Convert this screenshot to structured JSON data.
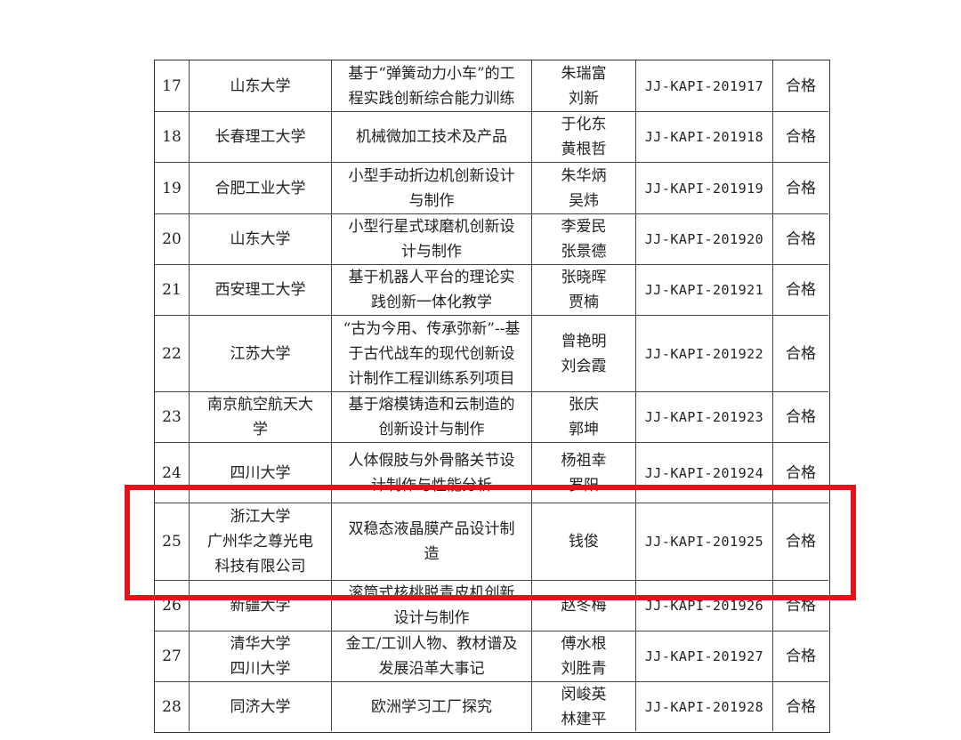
{
  "table": {
    "rows": [
      {
        "no": "17",
        "school": [
          "山东大学"
        ],
        "project": [
          "基于“弹簧动力小车”的工",
          "程实践创新综合能力训练"
        ],
        "people": [
          "朱瑞富",
          "刘新"
        ],
        "code": "JJ-KAPI-201917",
        "result": "合格"
      },
      {
        "no": "18",
        "school": [
          "长春理工大学"
        ],
        "project": [
          "机械微加工技术及产品"
        ],
        "people": [
          "于化东",
          "黄根哲"
        ],
        "code": "JJ-KAPI-201918",
        "result": "合格"
      },
      {
        "no": "19",
        "school": [
          "合肥工业大学"
        ],
        "project": [
          "小型手动折边机创新设计",
          "与制作"
        ],
        "people": [
          "朱华炳",
          "吴炜"
        ],
        "code": "JJ-KAPI-201919",
        "result": "合格"
      },
      {
        "no": "20",
        "school": [
          "山东大学"
        ],
        "project": [
          "小型行星式球磨机创新设",
          "计与制作"
        ],
        "people": [
          "李爱民",
          "张景德"
        ],
        "code": "JJ-KAPI-201920",
        "result": "合格"
      },
      {
        "no": "21",
        "school": [
          "西安理工大学"
        ],
        "project": [
          "基于机器人平台的理论实",
          "践创新一体化教学"
        ],
        "people": [
          "张晓晖",
          "贾楠"
        ],
        "code": "JJ-KAPI-201921",
        "result": "合格"
      },
      {
        "no": "22",
        "school": [
          "江苏大学"
        ],
        "project": [
          "“古为今用、传承弥新”--基",
          "于古代战车的现代创新设",
          "计制作工程训练系列项目"
        ],
        "people": [
          "曾艳明",
          "刘会霞"
        ],
        "code": "JJ-KAPI-201922",
        "result": "合格"
      },
      {
        "no": "23",
        "school": [
          "南京航空航天大",
          "学"
        ],
        "project": [
          "基于熔模铸造和云制造的",
          "创新设计与制作"
        ],
        "people": [
          "张庆",
          "郭坤"
        ],
        "code": "JJ-KAPI-201923",
        "result": "合格"
      },
      {
        "no": "24",
        "school": [
          "四川大学"
        ],
        "project": [
          "人体假肢与外骨骼关节设",
          "计制作与性能分析"
        ],
        "people": [
          "杨祖幸",
          "罗阳"
        ],
        "code": "JJ-KAPI-201924",
        "result": "合格"
      },
      {
        "no": "25",
        "school": [
          "浙江大学",
          "广州华之尊光电",
          "科技有限公司"
        ],
        "project": [
          "双稳态液晶膜产品设计制",
          "造"
        ],
        "people": [
          "钱俊"
        ],
        "code": "JJ-KAPI-201925",
        "result": "合格"
      },
      {
        "no": "26",
        "school": [
          "新疆大学"
        ],
        "project": [
          "滚筒式核桃脱青皮机创新",
          "设计与制作"
        ],
        "people": [
          "赵冬梅"
        ],
        "code": "JJ-KAPI-201926",
        "result": "合格"
      },
      {
        "no": "27",
        "school": [
          "清华大学",
          "四川大学"
        ],
        "project": [
          "金工/工训人物、教材谱及",
          "发展沿革大事记"
        ],
        "people": [
          "傅水根",
          "刘胜青"
        ],
        "code": "JJ-KAPI-201927",
        "result": "合格"
      },
      {
        "no": "28",
        "school": [
          "同济大学"
        ],
        "project": [
          "欧洲学习工厂探究"
        ],
        "people": [
          "闵峻英",
          "林建平"
        ],
        "code": "JJ-KAPI-201928",
        "result": "合格"
      }
    ]
  }
}
